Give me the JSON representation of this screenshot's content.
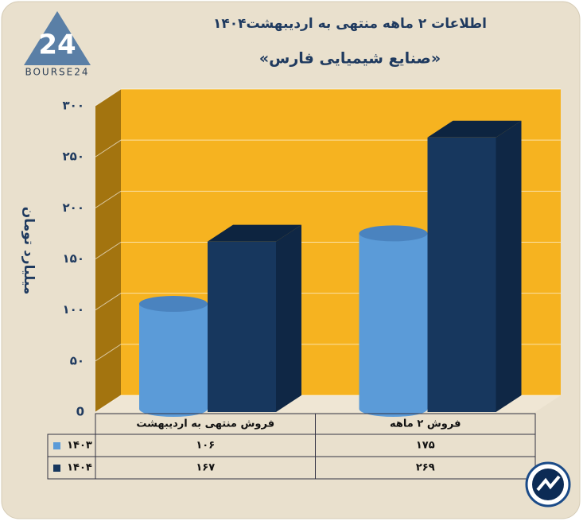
{
  "logo": {
    "mark": "24",
    "name": "BOURSE24"
  },
  "chart_data": {
    "type": "bar3d",
    "title": "اطلاعات ۲ ماهه منتهی به اردیبهشت۱۴۰۴",
    "subtitle": "«صنایع شیمیایی فارس»",
    "y_label": "میلیارد تومان",
    "categories": [
      "فروش منتهی به  اردیبهشت",
      "فروش ۲  ماهه"
    ],
    "series": [
      {
        "name": "۱۴۰۳",
        "color": "#5b9bd8",
        "shape": "cylinder",
        "values": [
          106,
          175
        ],
        "value_labels": [
          "۱۰۶",
          "۱۷۵"
        ]
      },
      {
        "name": "۱۴۰۴",
        "color": "#17375e",
        "shape": "box",
        "values": [
          167,
          269
        ],
        "value_labels": [
          "۱۶۷",
          "۲۶۹"
        ]
      }
    ],
    "ylim": [
      0,
      300
    ],
    "yticks": [
      {
        "value": 0,
        "label": "0"
      },
      {
        "value": 50,
        "label": "۵۰"
      },
      {
        "value": 100,
        "label": "۱۰۰"
      },
      {
        "value": 150,
        "label": "۱۵۰"
      },
      {
        "value": 200,
        "label": "۲۰۰"
      },
      {
        "value": 250,
        "label": "۲۵۰"
      },
      {
        "value": 300,
        "label": "۳۰۰"
      }
    ],
    "grid": true,
    "wall_color": "#f6b320",
    "side_color": "#a3740f"
  }
}
